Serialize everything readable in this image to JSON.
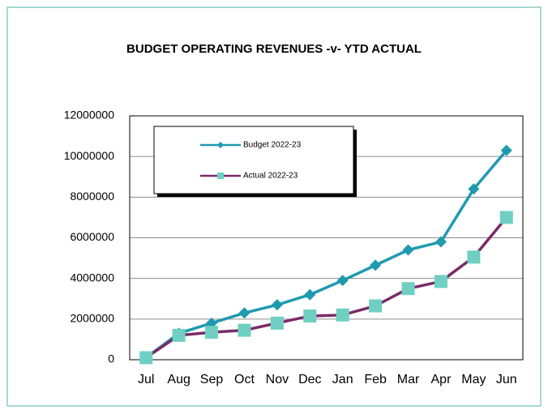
{
  "chart_data": {
    "type": "line",
    "title": "BUDGET OPERATING REVENUES -v- YTD ACTUAL",
    "categories": [
      "Jul",
      "Aug",
      "Sep",
      "Oct",
      "Nov",
      "Dec",
      "Jan",
      "Feb",
      "Mar",
      "Apr",
      "May",
      "Jun"
    ],
    "series": [
      {
        "name": "Budget 2022-23",
        "color": "#1f9aae",
        "marker": "diamond",
        "values": [
          100000,
          1300000,
          1800000,
          2300000,
          2700000,
          3200000,
          3900000,
          4650000,
          5400000,
          5800000,
          8400000,
          10300000
        ]
      },
      {
        "name": "Actual 2022-23",
        "color": "#7b2a68",
        "marker_color": "#6fcfc3",
        "marker": "square",
        "values": [
          100000,
          1200000,
          1350000,
          1450000,
          1800000,
          2150000,
          2200000,
          2650000,
          3500000,
          3850000,
          5050000,
          7000000
        ]
      }
    ],
    "ylim": [
      0,
      12000000
    ],
    "yticks": [
      0,
      2000000,
      4000000,
      6000000,
      8000000,
      10000000,
      12000000
    ],
    "grid": true,
    "legend": "top-left"
  }
}
